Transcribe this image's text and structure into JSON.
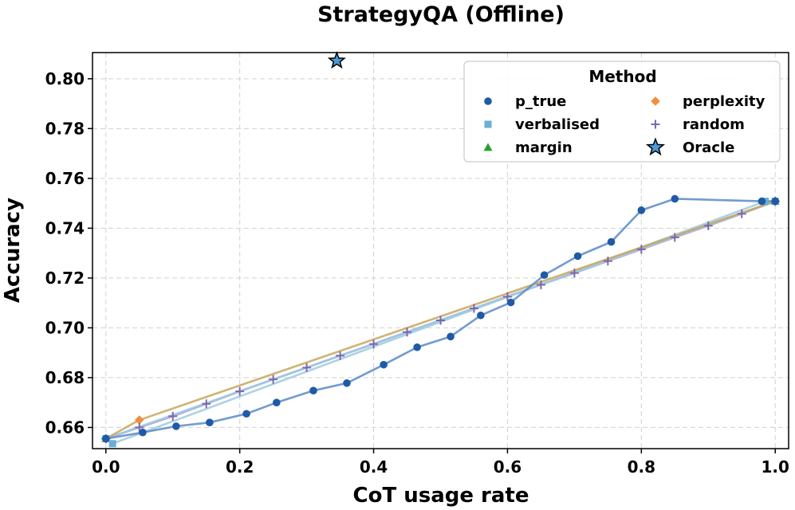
{
  "chart_data": {
    "type": "line",
    "title": "StrategyQA (Offline)",
    "xlabel": "CoT usage rate",
    "ylabel": "Accuracy",
    "xlim": [
      -0.02,
      1.02
    ],
    "ylim": [
      0.6515,
      0.8105
    ],
    "xticks": [
      0.0,
      0.2,
      0.4,
      0.6,
      0.8,
      1.0
    ],
    "xtick_labels": [
      "0.0",
      "0.2",
      "0.4",
      "0.6",
      "0.8",
      "1.0"
    ],
    "yticks": [
      0.66,
      0.68,
      0.7,
      0.72,
      0.74,
      0.76,
      0.78,
      0.8
    ],
    "ytick_labels": [
      "0.66",
      "0.68",
      "0.70",
      "0.72",
      "0.74",
      "0.76",
      "0.78",
      "0.80"
    ],
    "grid": true,
    "legend": {
      "title": "Method",
      "position": "top-right",
      "columns": 2
    },
    "series": [
      {
        "name": "p_true",
        "marker": "circle",
        "color": "#1f5aa6",
        "line_color": "#5a8ac6",
        "x": [
          0.0,
          0.055,
          0.105,
          0.155,
          0.21,
          0.255,
          0.31,
          0.36,
          0.415,
          0.465,
          0.515,
          0.56,
          0.605,
          0.655,
          0.705,
          0.755,
          0.8,
          0.85,
          0.98,
          1.0
        ],
        "y": [
          0.6555,
          0.658,
          0.6605,
          0.662,
          0.6655,
          0.67,
          0.6748,
          0.6778,
          0.6852,
          0.6922,
          0.6965,
          0.705,
          0.7102,
          0.7212,
          0.7288,
          0.7345,
          0.7472,
          0.7518,
          0.7508,
          0.7508
        ]
      },
      {
        "name": "verbalised",
        "marker": "square",
        "color": "#6baed6",
        "line_color": "#9ecae1",
        "x": [
          0.0,
          0.01,
          0.985,
          1.0
        ],
        "y": [
          0.6555,
          0.6535,
          0.7508,
          0.7508
        ]
      },
      {
        "name": "margin",
        "marker": "triangle",
        "color": "#2ca02c",
        "line_color": "#9ecae1",
        "x": [
          0.0,
          1.0
        ],
        "y": [
          0.6555,
          0.7508
        ]
      },
      {
        "name": "perplexity",
        "marker": "diamond",
        "color": "#f28e3c",
        "line_color": "#c9a55a",
        "x": [
          0.0,
          0.05,
          1.0
        ],
        "y": [
          0.6555,
          0.663,
          0.7508
        ]
      },
      {
        "name": "random",
        "marker": "plus",
        "color": "#7b68ae",
        "line_color": "#a99bd0",
        "x": [
          0.0,
          0.05,
          0.1,
          0.15,
          0.2,
          0.25,
          0.3,
          0.35,
          0.4,
          0.45,
          0.5,
          0.55,
          0.6,
          0.65,
          0.7,
          0.75,
          0.8,
          0.85,
          0.9,
          0.95,
          1.0
        ],
        "y": [
          0.6555,
          0.66,
          0.6645,
          0.6695,
          0.6745,
          0.6793,
          0.684,
          0.6888,
          0.6935,
          0.6983,
          0.703,
          0.7078,
          0.7125,
          0.7173,
          0.722,
          0.7268,
          0.7315,
          0.7363,
          0.741,
          0.7458,
          0.7508
        ]
      },
      {
        "name": "Oracle",
        "marker": "star",
        "color": "#4c9ad6",
        "line_color": "none",
        "x": [
          0.345
        ],
        "y": [
          0.8072
        ]
      }
    ]
  }
}
